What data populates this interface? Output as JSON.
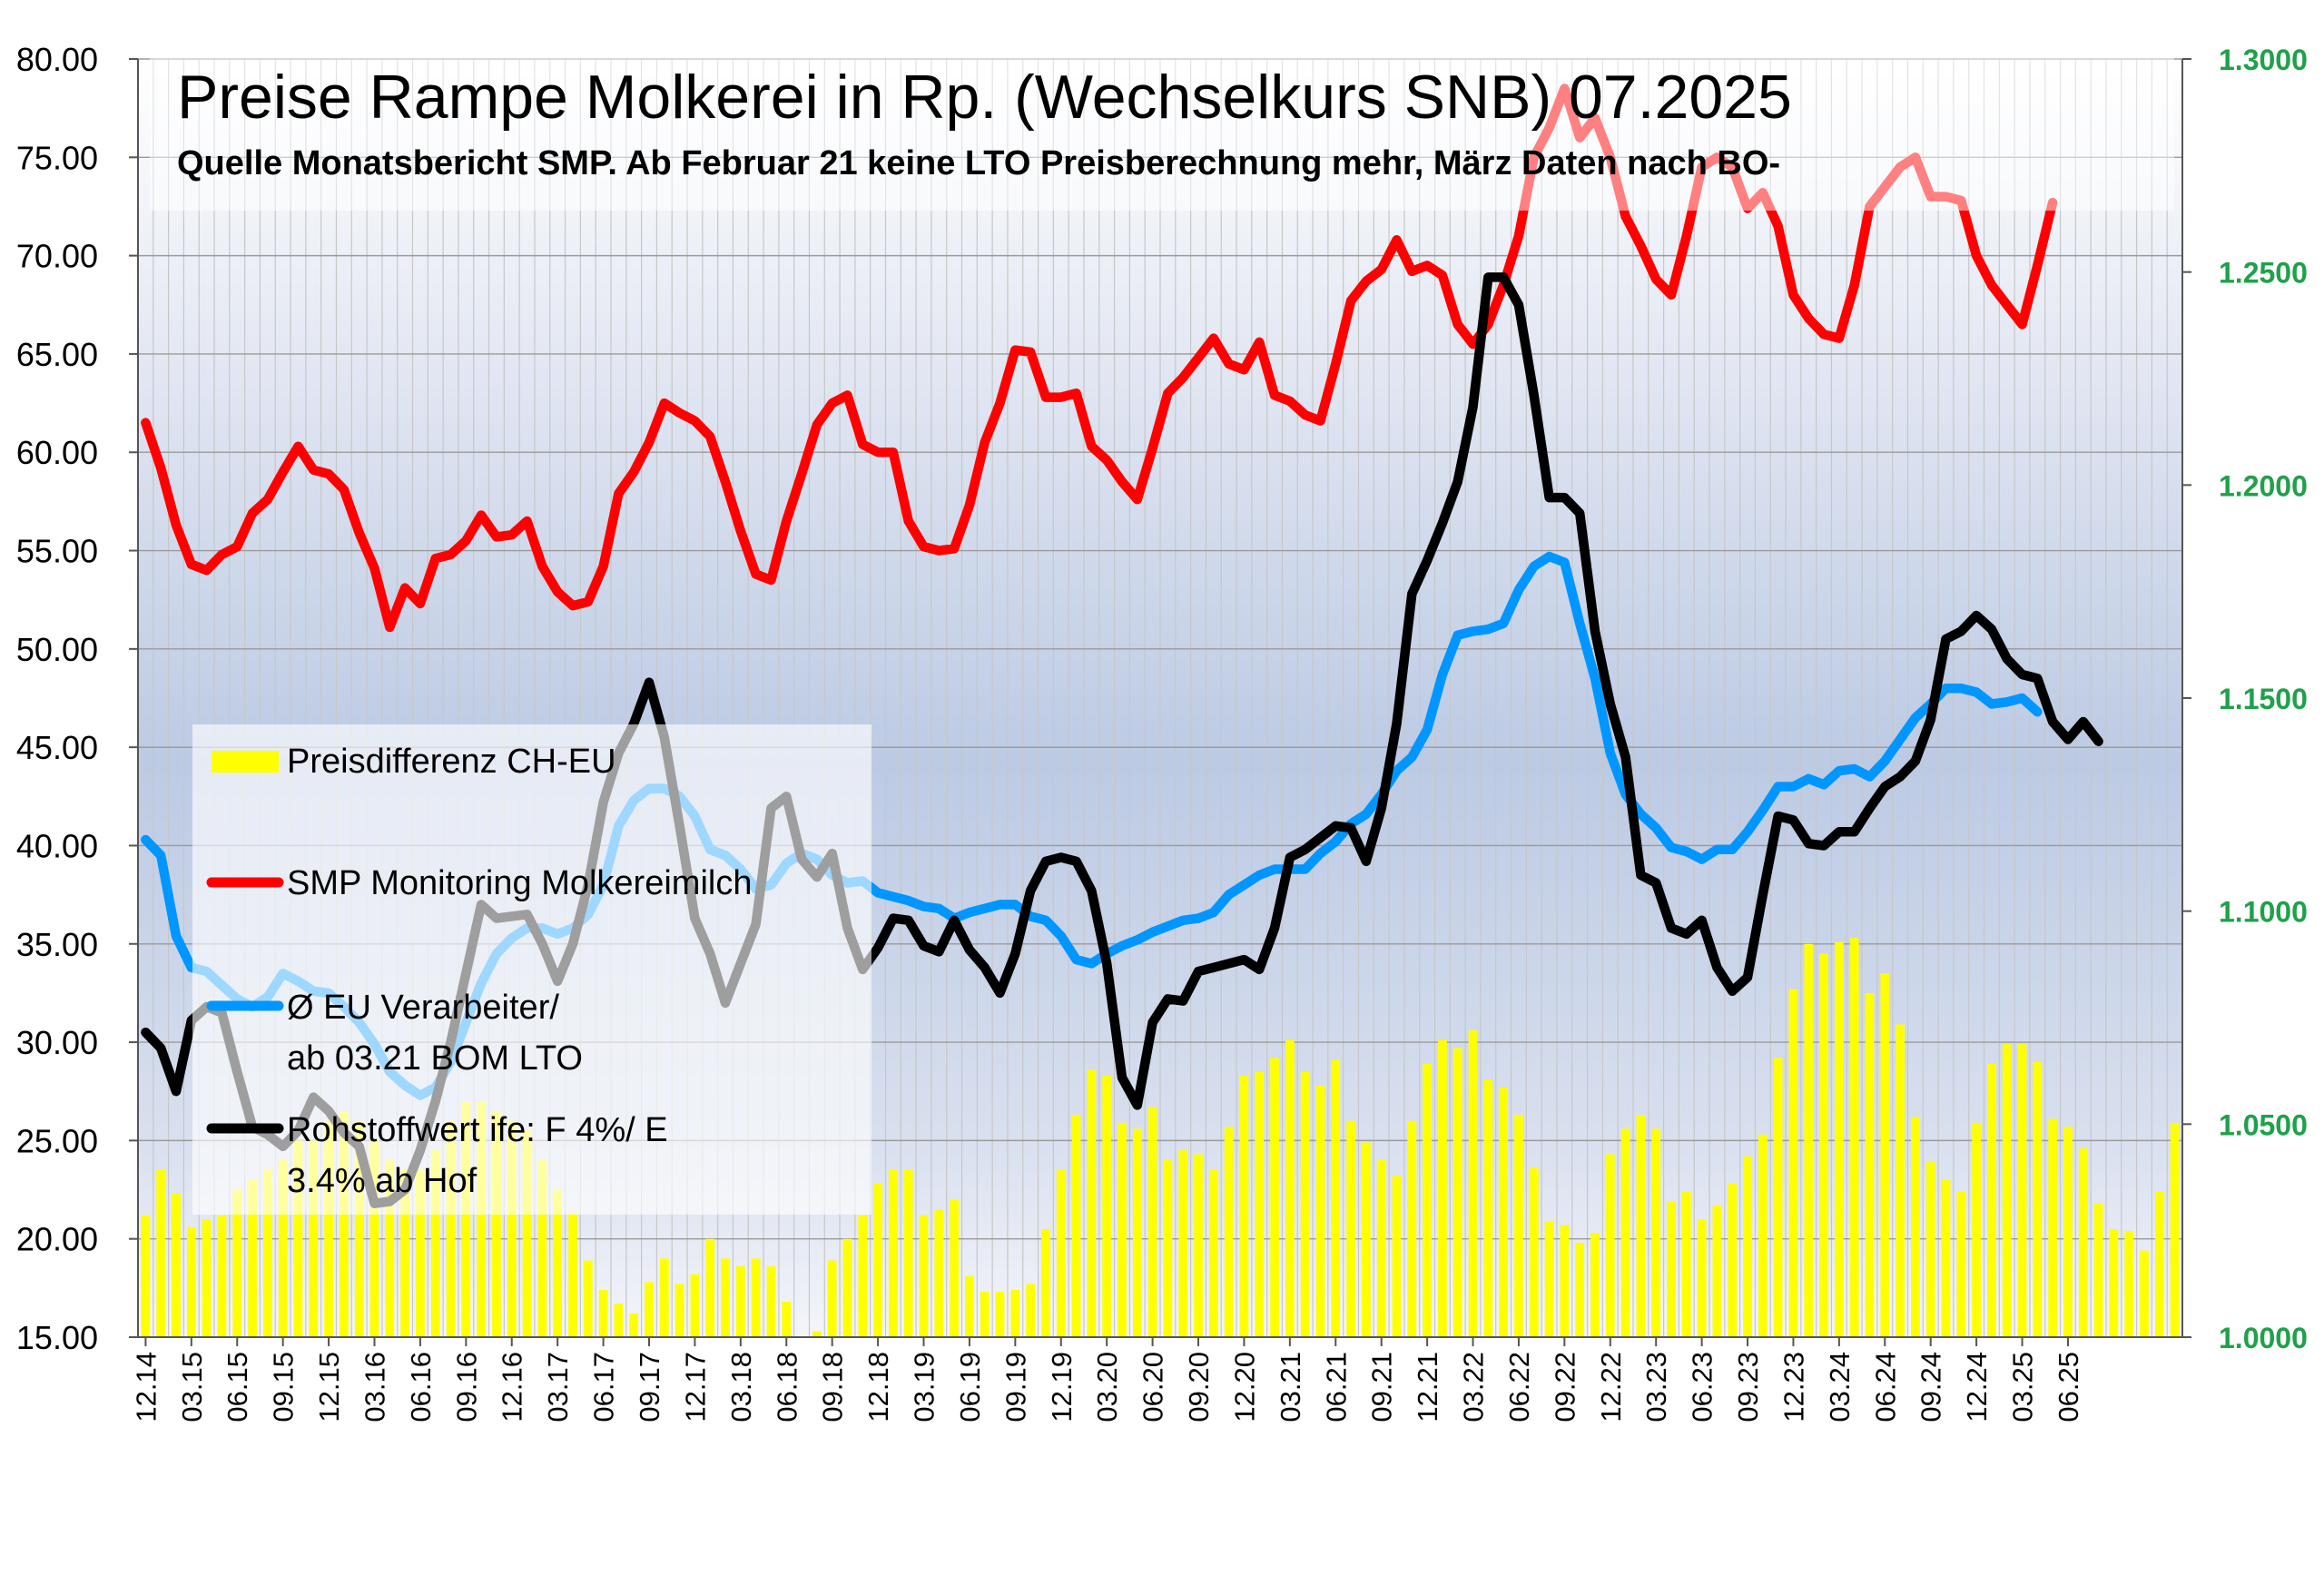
{
  "chart_data": {
    "type": "line",
    "title": "Preise Rampe Molkerei in Rp. (Wechselkurs SNB) 07.2025",
    "subtitle": "Quelle Monatsbericht  SMP. Ab Februar 21 keine LTO Preisberechnung mehr, März Daten nach BO-",
    "y_left": {
      "min": 15,
      "max": 80,
      "step": 5,
      "ticks": [
        "15.00",
        "20.00",
        "25.00",
        "30.00",
        "35.00",
        "40.00",
        "45.00",
        "50.00",
        "55.00",
        "60.00",
        "65.00",
        "70.00",
        "75.00",
        "80.00"
      ]
    },
    "y_right": {
      "min": 1.0,
      "max": 1.3,
      "step": 0.05,
      "ticks": [
        "1.0000",
        "1.0500",
        "1.1000",
        "1.1500",
        "1.2000",
        "1.2500",
        "1.3000"
      ]
    },
    "x_start": "12.14",
    "x_ticks": [
      "12.14",
      "03.15",
      "06.15",
      "09.15",
      "12.15",
      "03.16",
      "06.16",
      "09.16",
      "12.16",
      "03.17",
      "06.17",
      "09.17",
      "12.17",
      "03.18",
      "06.18",
      "09.18",
      "12.18",
      "03.19",
      "06.19",
      "09.19",
      "12.19",
      "03.20",
      "06.20",
      "09.20",
      "12.20",
      "03.21",
      "06.21",
      "09.21",
      "12.21",
      "03.22",
      "06.22",
      "09.22",
      "12.22",
      "03.23",
      "06.23",
      "09.23",
      "12.23",
      "03.24",
      "06.24",
      "09.24",
      "12.24",
      "03.25",
      "06.25"
    ],
    "legend": [
      {
        "label": "Preisdifferenz CH-EU",
        "type": "bar",
        "color": "#ffff00"
      },
      {
        "label": "SMP Monitoring Molkereimilch",
        "type": "line",
        "color": "#ff0000"
      },
      {
        "label": "Ø EU Verarbeiter/ ab 03.21 BOM LTO",
        "type": "line",
        "color": "#0096ff"
      },
      {
        "label": "Rohstoffwert ife: F 4%/ E 3.4% ab Hof",
        "type": "line",
        "color": "#000000"
      }
    ],
    "series": [
      {
        "name": "Preisdifferenz CH-EU",
        "type": "bar",
        "color": "#ffff00",
        "values": [
          21.2,
          23.5,
          22.3,
          20.6,
          21,
          21.2,
          22.5,
          23,
          23.5,
          24,
          25,
          25,
          26,
          26.5,
          26,
          25,
          24,
          23.5,
          23.5,
          24.5,
          26,
          27,
          27,
          26.5,
          26,
          25.5,
          24,
          22.5,
          21.3,
          18.9,
          17.4,
          16.7,
          16.2,
          17.8,
          19,
          17.7,
          18.2,
          20,
          19,
          18.6,
          19,
          18.6,
          16.8,
          15,
          15.3,
          18.9,
          20,
          21.2,
          22.8,
          23.5,
          23.5,
          21.2,
          21.5,
          22,
          18.1,
          17.3,
          17.3,
          17.4,
          17.7,
          20.5,
          23.5,
          26.3,
          28.6,
          28.3,
          25.9,
          25.6,
          26.7,
          24,
          24.5,
          24.3,
          23.5,
          25.7,
          28.3,
          28.5,
          29.2,
          30.1,
          28.5,
          27.8,
          29.1,
          26,
          24.9,
          24,
          23.2,
          26,
          28.9,
          30.1,
          29.7,
          30.6,
          28.1,
          27.7,
          26.3,
          23.6,
          20.9,
          20.7,
          19.8,
          20.3,
          24.3,
          25.6,
          26.3,
          25.6,
          21.9,
          22.4,
          21,
          21.7,
          22.8,
          24.2,
          25.3,
          29.2,
          32.7,
          35,
          34.5,
          35.1,
          35.3,
          32.5,
          33.5,
          30.9,
          26.2,
          23.9,
          23,
          22.4,
          25.9,
          28.9,
          29.9,
          29.9,
          29,
          26.1,
          25.7,
          24.6,
          21.8,
          20.5,
          20.4,
          19.4,
          22.4,
          25.9
        ]
      },
      {
        "name": "SMP Monitoring Molkereimilch",
        "type": "line",
        "color": "#ff0000",
        "values": [
          61.5,
          59.2,
          56.3,
          54.3,
          54,
          54.8,
          55.2,
          56.9,
          57.6,
          59,
          60.3,
          59.1,
          58.9,
          58.1,
          55.9,
          54.1,
          51.1,
          53.1,
          52.3,
          54.6,
          54.8,
          55.5,
          56.8,
          55.7,
          55.8,
          56.5,
          54.2,
          52.9,
          52.2,
          52.4,
          54.2,
          57.9,
          59,
          60.5,
          62.5,
          62,
          61.6,
          60.8,
          58.5,
          56,
          53.8,
          53.5,
          56.5,
          58.9,
          61.4,
          62.5,
          62.9,
          60.4,
          60,
          60,
          56.5,
          55.2,
          55,
          55.1,
          57.3,
          60.5,
          62.5,
          65.2,
          65.1,
          62.8,
          62.8,
          63,
          60.3,
          59.6,
          58.5,
          57.6,
          60.2,
          63,
          63.8,
          64.8,
          65.8,
          64.5,
          64.2,
          65.6,
          62.9,
          62.6,
          61.9,
          61.6,
          64.5,
          67.7,
          68.7,
          69.3,
          70.8,
          69.2,
          69.5,
          69,
          66.5,
          65.5,
          66.5,
          68.5,
          71,
          75,
          76.5,
          78.5,
          76,
          77,
          75,
          72,
          70.5,
          68.8,
          68,
          71,
          74.5,
          75,
          74.5,
          72.4,
          73.2,
          71.5,
          68,
          66.8,
          66,
          65.8,
          68.5,
          72.5,
          73.5,
          74.5,
          75,
          73,
          73,
          72.8,
          70,
          68.5,
          67.5,
          66.5,
          69.5,
          72.7
        ]
      },
      {
        "name": "Ø EU Verarbeiter/ ab 03.21 BOM LTO",
        "type": "line",
        "color": "#0096ff",
        "values": [
          40.3,
          39.5,
          35.4,
          33.8,
          33.6,
          32.9,
          32.2,
          31.8,
          32.3,
          33.5,
          33.1,
          32.6,
          32.5,
          31.8,
          31,
          29.9,
          28.5,
          27.8,
          27.3,
          27.7,
          29,
          31,
          33,
          34.5,
          35.3,
          35.8,
          35.8,
          35.5,
          35.8,
          36.5,
          38,
          41,
          42.3,
          42.9,
          42.9,
          42.5,
          41.5,
          39.8,
          39.5,
          38.8,
          37.8,
          38,
          39.1,
          39.6,
          39.3,
          38.5,
          38.1,
          38.2,
          37.6,
          37.4,
          37.2,
          36.9,
          36.8,
          36.3,
          36.6,
          36.8,
          37,
          37,
          36.4,
          36.2,
          35.4,
          34.2,
          34,
          34.5,
          34.9,
          35.2,
          35.6,
          35.9,
          36.2,
          36.3,
          36.6,
          37.5,
          38,
          38.5,
          38.8,
          38.8,
          38.8,
          39.6,
          40.2,
          41.1,
          41.6,
          42.6,
          43.8,
          44.5,
          45.9,
          48.7,
          50.7,
          50.9,
          51,
          51.3,
          53,
          54.2,
          54.7,
          54.4,
          51.3,
          48.5,
          44.7,
          42.6,
          41.6,
          40.9,
          39.9,
          39.7,
          39.3,
          39.8,
          39.8,
          40.7,
          41.8,
          43,
          43,
          43.4,
          43.1,
          43.8,
          43.9,
          43.5,
          44.3,
          45.4,
          46.5,
          47.2,
          48,
          48,
          47.8,
          47.2,
          47.3,
          47.5,
          46.8
        ]
      },
      {
        "name": "Rohstoffwert ife: F 4%/ E 3.4% ab Hof",
        "type": "line",
        "color": "#000000",
        "values": [
          30.5,
          29.7,
          27.5,
          31.1,
          31.8,
          31.5,
          28.5,
          25.7,
          25.3,
          24.7,
          25.5,
          27.2,
          26.5,
          25.4,
          24.7,
          21.8,
          21.9,
          22.5,
          24.5,
          27,
          30,
          33.5,
          37,
          36.3,
          36.4,
          36.5,
          35,
          33.1,
          35,
          38,
          42.2,
          44.7,
          46.2,
          48.3,
          45.5,
          41,
          36.3,
          34.5,
          32,
          34,
          36,
          41.9,
          42.5,
          39.3,
          38.4,
          39.6,
          35.8,
          33.7,
          34.8,
          36.3,
          36.2,
          34.9,
          34.6,
          36.2,
          34.7,
          33.8,
          32.5,
          34.5,
          37.7,
          39.2,
          39.4,
          39.2,
          37.7,
          34,
          28.2,
          26.8,
          31,
          32.2,
          32.1,
          33.6,
          33.8,
          34,
          34.2,
          33.7,
          35.8,
          39.4,
          39.8,
          40.4,
          41,
          40.9,
          39.2,
          41.9,
          46.2,
          52.8,
          54.5,
          56.4,
          58.5,
          62.3,
          68.9,
          68.9,
          67.5,
          62.9,
          57.7,
          57.7,
          56.9,
          50.9,
          47.2,
          44.5,
          38.5,
          38.1,
          35.8,
          35.5,
          36.2,
          33.8,
          32.6,
          33.3,
          37.5,
          41.5,
          41.3,
          40.1,
          40,
          40.7,
          40.7,
          41.9,
          43,
          43.5,
          44.3,
          46.4,
          50.5,
          50.9,
          51.7,
          51,
          49.5,
          48.7,
          48.5,
          46.3,
          45.4,
          46.3,
          45.3
        ]
      }
    ]
  }
}
